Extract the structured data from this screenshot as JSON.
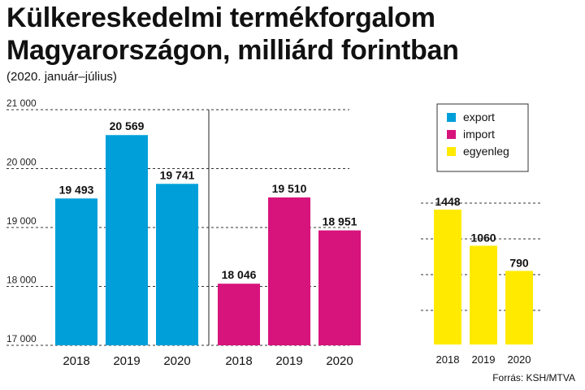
{
  "title": "Külkereskedelmi termékforgalom Magyarországon, milliárd forintban",
  "subtitle": "(2020. január–július)",
  "source": "Forrás: KSH/MTVA",
  "colors": {
    "export": "#009fda",
    "import": "#d7137c",
    "balance": "#ffea00"
  },
  "legend": [
    "export",
    "import",
    "egyenleg"
  ],
  "chart_data": [
    {
      "type": "bar",
      "categories": [
        "2018",
        "2019",
        "2020"
      ],
      "series": [
        {
          "name": "export",
          "values": [
            19493,
            20569,
            19741
          ],
          "labels": [
            "19 493",
            "20 569",
            "19 741"
          ]
        },
        {
          "name": "import",
          "values": [
            18046,
            19510,
            18951
          ],
          "labels": [
            "18 046",
            "19 510",
            "18 951"
          ]
        }
      ],
      "ylim": [
        17000,
        21000
      ],
      "yticks": [
        17000,
        18000,
        19000,
        20000,
        21000
      ],
      "ytick_labels": [
        "17 000",
        "18 000",
        "19 000",
        "20 000",
        "21 000"
      ],
      "grid": true
    },
    {
      "type": "bar",
      "categories": [
        "2018",
        "2019",
        "2020"
      ],
      "series": [
        {
          "name": "egyenleg",
          "values": [
            1448,
            1060,
            790
          ],
          "labels": [
            "1448",
            "1060",
            "790"
          ]
        }
      ],
      "grid": true
    }
  ]
}
